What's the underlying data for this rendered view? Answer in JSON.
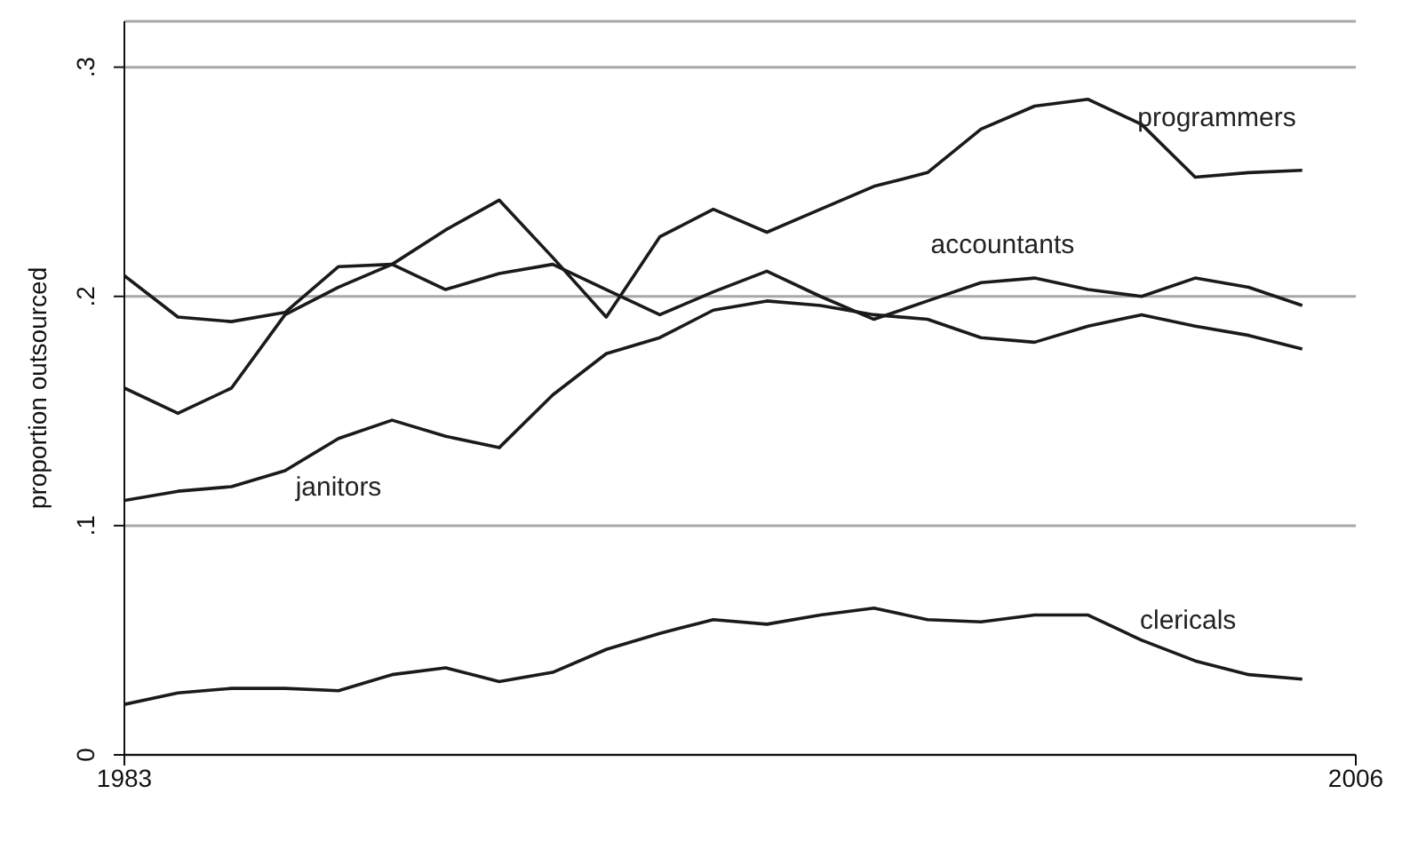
{
  "chart_data": {
    "type": "line",
    "ylabel": "proportion outsourced",
    "x": [
      1983,
      1984,
      1985,
      1986,
      1987,
      1988,
      1989,
      1990,
      1991,
      1992,
      1993,
      1994,
      1995,
      1996,
      1997,
      1998,
      1999,
      2000,
      2001,
      2002,
      2003,
      2004,
      2005
    ],
    "series": [
      {
        "name": "programmers",
        "color": "#1a1a1a",
        "values": [
          0.16,
          0.149,
          0.16,
          0.192,
          0.204,
          0.214,
          0.229,
          0.242,
          0.217,
          0.191,
          0.226,
          0.238,
          0.228,
          0.238,
          0.248,
          0.254,
          0.273,
          0.283,
          0.286,
          0.275,
          0.252,
          0.254,
          0.255
        ]
      },
      {
        "name": "accountants",
        "color": "#1a1a1a",
        "values": [
          0.209,
          0.191,
          0.189,
          0.193,
          0.213,
          0.214,
          0.203,
          0.21,
          0.214,
          0.203,
          0.192,
          0.202,
          0.211,
          0.2,
          0.19,
          0.198,
          0.206,
          0.208,
          0.203,
          0.2,
          0.208,
          0.204,
          0.196
        ]
      },
      {
        "name": "janitors",
        "color": "#1a1a1a",
        "values": [
          0.111,
          0.115,
          0.117,
          0.124,
          0.138,
          0.146,
          0.139,
          0.134,
          0.157,
          0.175,
          0.182,
          0.194,
          0.198,
          0.196,
          0.192,
          0.19,
          0.182,
          0.18,
          0.187,
          0.192,
          0.187,
          0.183,
          0.177
        ]
      },
      {
        "name": "clericals",
        "color": "#1a1a1a",
        "values": [
          0.022,
          0.027,
          0.029,
          0.029,
          0.028,
          0.035,
          0.038,
          0.032,
          0.036,
          0.046,
          0.053,
          0.059,
          0.057,
          0.061,
          0.064,
          0.059,
          0.058,
          0.061,
          0.061,
          0.05,
          0.041,
          0.035,
          0.033
        ]
      }
    ],
    "xlim": [
      1983,
      2006
    ],
    "xticks": [
      1983,
      2006
    ],
    "ylim": [
      0,
      0.32
    ],
    "yticks": [
      {
        "value": 0,
        "label": "0"
      },
      {
        "value": 0.1,
        "label": ".1"
      },
      {
        "value": 0.2,
        "label": ".2"
      },
      {
        "value": 0.3,
        "label": ".3"
      }
    ],
    "grid": "y",
    "legend": false,
    "marker": "none",
    "line_style": "solid"
  }
}
